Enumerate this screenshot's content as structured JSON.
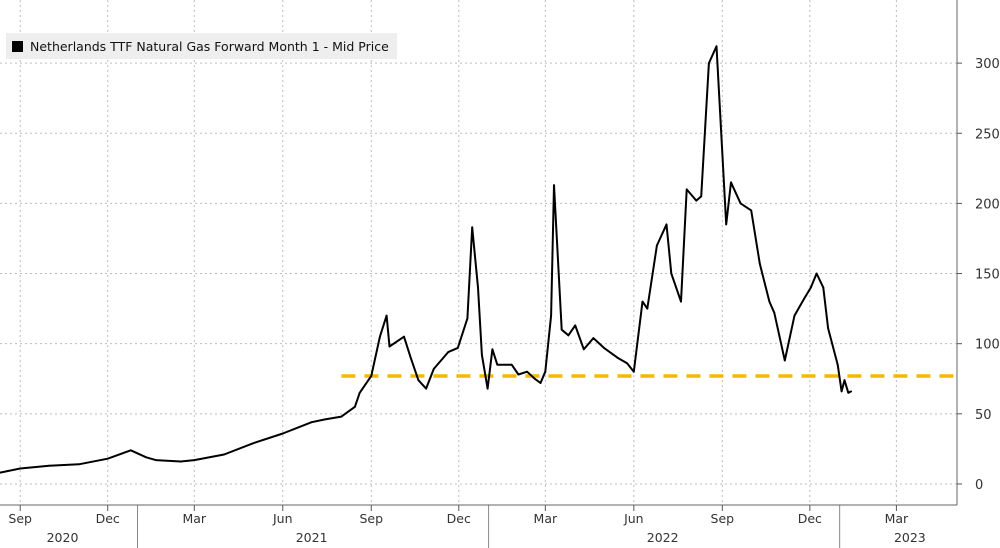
{
  "chart_data": {
    "type": "line",
    "title": "",
    "legend": {
      "placement": "top-left",
      "entries": [
        "Netherlands TTF Natural Gas Forward Month 1 - Mid Price"
      ]
    },
    "colors": {
      "series": "#000000",
      "reference": "#f5b800",
      "grid": "#bdbdbd",
      "background": "#ffffff"
    },
    "xlabel": "",
    "ylabel": "",
    "xlim": [
      "2020-08-11",
      "2023-05-03"
    ],
    "ylim": [
      -15,
      345
    ],
    "grid": true,
    "y_ticks": [
      0,
      50,
      100,
      150,
      200,
      250,
      300
    ],
    "x_month_ticks": [
      {
        "label": "Sep",
        "date": "2020-09-01"
      },
      {
        "label": "Dec",
        "date": "2020-12-01"
      },
      {
        "label": "Mar",
        "date": "2021-03-01"
      },
      {
        "label": "Jun",
        "date": "2021-06-01"
      },
      {
        "label": "Sep",
        "date": "2021-09-01"
      },
      {
        "label": "Dec",
        "date": "2021-12-01"
      },
      {
        "label": "Mar",
        "date": "2022-03-01"
      },
      {
        "label": "Jun",
        "date": "2022-06-01"
      },
      {
        "label": "Sep",
        "date": "2022-09-01"
      },
      {
        "label": "Dec",
        "date": "2022-12-01"
      },
      {
        "label": "Mar",
        "date": "2023-03-01"
      }
    ],
    "x_year_labels": [
      {
        "label": "2020",
        "date": "2020-10-15"
      },
      {
        "label": "2021",
        "date": "2021-07-01"
      },
      {
        "label": "2022",
        "date": "2022-07-01"
      },
      {
        "label": "2023",
        "date": "2023-03-15"
      }
    ],
    "year_dividers": [
      "2021-01-01",
      "2022-01-01",
      "2023-01-01"
    ],
    "reference_line": {
      "style": "dashed",
      "y": 77,
      "from": "2021-08-01",
      "to": "2023-05-03"
    },
    "series": [
      {
        "name": "Netherlands TTF Natural Gas Forward Month 1 - Mid Price",
        "x": [
          "2020-08-11",
          "2020-09-01",
          "2020-10-01",
          "2020-11-01",
          "2020-12-01",
          "2020-12-25",
          "2021-01-10",
          "2021-01-20",
          "2021-02-15",
          "2021-03-01",
          "2021-04-01",
          "2021-05-01",
          "2021-06-01",
          "2021-07-01",
          "2021-07-15",
          "2021-08-01",
          "2021-08-15",
          "2021-08-20",
          "2021-09-01",
          "2021-09-10",
          "2021-09-17",
          "2021-09-20",
          "2021-10-05",
          "2021-10-12",
          "2021-10-20",
          "2021-10-28",
          "2021-11-05",
          "2021-11-20",
          "2021-11-30",
          "2021-12-10",
          "2021-12-15",
          "2021-12-21",
          "2021-12-25",
          "2021-12-31",
          "2022-01-05",
          "2022-01-10",
          "2022-01-25",
          "2022-02-01",
          "2022-02-10",
          "2022-02-18",
          "2022-02-24",
          "2022-03-01",
          "2022-03-07",
          "2022-03-10",
          "2022-03-18",
          "2022-03-25",
          "2022-04-01",
          "2022-04-10",
          "2022-04-20",
          "2022-05-01",
          "2022-05-15",
          "2022-05-25",
          "2022-06-01",
          "2022-06-10",
          "2022-06-15",
          "2022-06-25",
          "2022-07-05",
          "2022-07-10",
          "2022-07-20",
          "2022-07-26",
          "2022-08-05",
          "2022-08-10",
          "2022-08-18",
          "2022-08-26",
          "2022-09-05",
          "2022-09-10",
          "2022-09-20",
          "2022-10-01",
          "2022-10-10",
          "2022-10-20",
          "2022-10-25",
          "2022-11-05",
          "2022-11-15",
          "2022-11-25",
          "2022-12-02",
          "2022-12-08",
          "2022-12-15",
          "2022-12-20",
          "2022-12-30",
          "2023-01-03",
          "2023-01-06",
          "2023-01-10",
          "2023-01-13"
        ],
        "values": [
          8,
          11,
          13,
          14,
          18,
          24,
          19,
          17,
          16,
          17,
          21,
          29,
          36,
          44,
          46,
          48,
          55,
          65,
          77,
          105,
          120,
          98,
          105,
          90,
          74,
          68,
          82,
          94,
          97,
          118,
          183,
          140,
          92,
          68,
          96,
          85,
          85,
          78,
          80,
          75,
          72,
          80,
          120,
          213,
          110,
          106,
          113,
          96,
          104,
          97,
          90,
          86,
          80,
          130,
          125,
          170,
          185,
          150,
          130,
          210,
          202,
          205,
          300,
          312,
          185,
          215,
          200,
          195,
          157,
          130,
          122,
          88,
          120,
          132,
          140,
          150,
          140,
          111,
          85,
          66,
          74,
          65,
          66
        ]
      }
    ]
  }
}
